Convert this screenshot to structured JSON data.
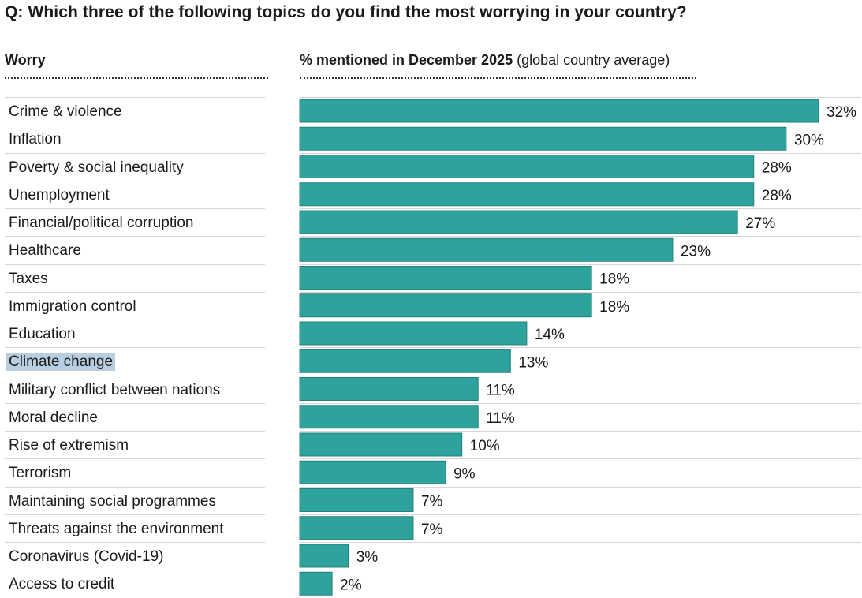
{
  "question": "Q: Which three of the following topics do you find the most worrying in your country?",
  "columns": {
    "worry": "Worry",
    "percent_bold": "% mentioned in December 2025",
    "percent_note": "(global country average)"
  },
  "colors": {
    "bar": "#2ea39e",
    "bar_stroke": "#23807c",
    "highlight": "#b8cfe2"
  },
  "highlighted_item": "Climate change",
  "chart_data": {
    "type": "bar",
    "orientation": "horizontal",
    "title": "Q: Which three of the following topics do you find the most worrying in your country?",
    "xlabel": "% mentioned in December 2025 (global country average)",
    "ylabel": "Worry",
    "xlim": [
      0,
      32
    ],
    "categories": [
      "Crime & violence",
      "Inflation",
      "Poverty & social inequality",
      "Unemployment",
      "Financial/political corruption",
      "Healthcare",
      "Taxes",
      "Immigration control",
      "Education",
      "Climate change",
      "Military conflict between nations",
      "Moral decline",
      "Rise of extremism",
      "Terrorism",
      "Maintaining social programmes",
      "Threats against the environment",
      "Coronavirus (Covid-19)",
      "Access to credit"
    ],
    "values": [
      32,
      30,
      28,
      28,
      27,
      23,
      18,
      18,
      14,
      13,
      11,
      11,
      10,
      9,
      7,
      7,
      3,
      2
    ],
    "labels": [
      "32%",
      "30%",
      "28%",
      "28%",
      "27%",
      "23%",
      "18%",
      "18%",
      "14%",
      "13%",
      "11%",
      "11%",
      "10%",
      "9%",
      "7%",
      "7%",
      "3%",
      "2%"
    ]
  }
}
